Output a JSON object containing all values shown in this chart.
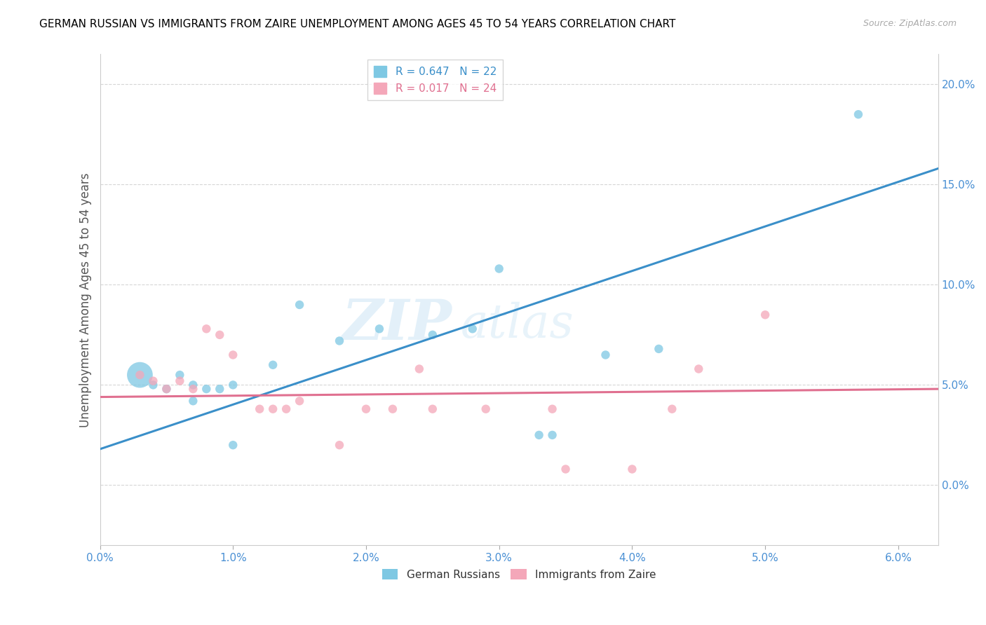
{
  "title": "GERMAN RUSSIAN VS IMMIGRANTS FROM ZAIRE UNEMPLOYMENT AMONG AGES 45 TO 54 YEARS CORRELATION CHART",
  "source": "Source: ZipAtlas.com",
  "xlabel_ticks": [
    "0.0%",
    "1.0%",
    "2.0%",
    "3.0%",
    "4.0%",
    "5.0%",
    "6.0%"
  ],
  "ylabel_ticks": [
    "0.0%",
    "5.0%",
    "10.0%",
    "15.0%",
    "20.0%"
  ],
  "xlim": [
    0.0,
    0.063
  ],
  "ylim": [
    -0.03,
    0.215
  ],
  "ylabel": "Unemployment Among Ages 45 to 54 years",
  "legend_entries": [
    {
      "label": "R = 0.647   N = 22",
      "color": "#7ec8e3"
    },
    {
      "label": "R = 0.017   N = 24",
      "color": "#f4a7b9"
    }
  ],
  "legend_labels": [
    "German Russians",
    "Immigrants from Zaire"
  ],
  "blue_color": "#7ec8e3",
  "pink_color": "#f4a7b9",
  "blue_line_color": "#3a8fc9",
  "pink_line_color": "#e07090",
  "watermark_zip": "ZIP",
  "watermark_atlas": "atlas",
  "blue_scatter": [
    [
      0.003,
      0.055
    ],
    [
      0.004,
      0.05
    ],
    [
      0.005,
      0.048
    ],
    [
      0.006,
      0.055
    ],
    [
      0.007,
      0.05
    ],
    [
      0.007,
      0.042
    ],
    [
      0.008,
      0.048
    ],
    [
      0.009,
      0.048
    ],
    [
      0.01,
      0.05
    ],
    [
      0.01,
      0.02
    ],
    [
      0.013,
      0.06
    ],
    [
      0.015,
      0.09
    ],
    [
      0.018,
      0.072
    ],
    [
      0.021,
      0.078
    ],
    [
      0.025,
      0.075
    ],
    [
      0.028,
      0.078
    ],
    [
      0.03,
      0.108
    ],
    [
      0.033,
      0.025
    ],
    [
      0.034,
      0.025
    ],
    [
      0.038,
      0.065
    ],
    [
      0.042,
      0.068
    ],
    [
      0.057,
      0.185
    ]
  ],
  "blue_sizes": [
    700,
    80,
    80,
    80,
    80,
    80,
    80,
    80,
    80,
    80,
    80,
    80,
    80,
    80,
    80,
    80,
    80,
    80,
    80,
    80,
    80,
    80
  ],
  "pink_scatter": [
    [
      0.003,
      0.055
    ],
    [
      0.004,
      0.052
    ],
    [
      0.005,
      0.048
    ],
    [
      0.006,
      0.052
    ],
    [
      0.007,
      0.048
    ],
    [
      0.008,
      0.078
    ],
    [
      0.009,
      0.075
    ],
    [
      0.01,
      0.065
    ],
    [
      0.012,
      0.038
    ],
    [
      0.013,
      0.038
    ],
    [
      0.014,
      0.038
    ],
    [
      0.015,
      0.042
    ],
    [
      0.018,
      0.02
    ],
    [
      0.02,
      0.038
    ],
    [
      0.022,
      0.038
    ],
    [
      0.024,
      0.058
    ],
    [
      0.025,
      0.038
    ],
    [
      0.029,
      0.038
    ],
    [
      0.034,
      0.038
    ],
    [
      0.035,
      0.008
    ],
    [
      0.04,
      0.008
    ],
    [
      0.043,
      0.038
    ],
    [
      0.045,
      0.058
    ],
    [
      0.05,
      0.085
    ]
  ],
  "pink_sizes": [
    80,
    80,
    80,
    80,
    80,
    80,
    80,
    80,
    80,
    80,
    80,
    80,
    80,
    80,
    80,
    80,
    80,
    80,
    80,
    80,
    80,
    80,
    80,
    80
  ],
  "blue_line_x": [
    0.0,
    0.063
  ],
  "blue_line_y": [
    0.018,
    0.158
  ],
  "pink_line_x": [
    0.0,
    0.063
  ],
  "pink_line_y": [
    0.044,
    0.048
  ]
}
